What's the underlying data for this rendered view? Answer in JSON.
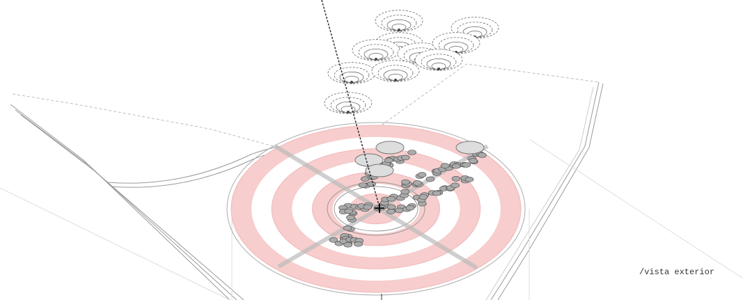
{
  "caption": "/vista exterior"
}
